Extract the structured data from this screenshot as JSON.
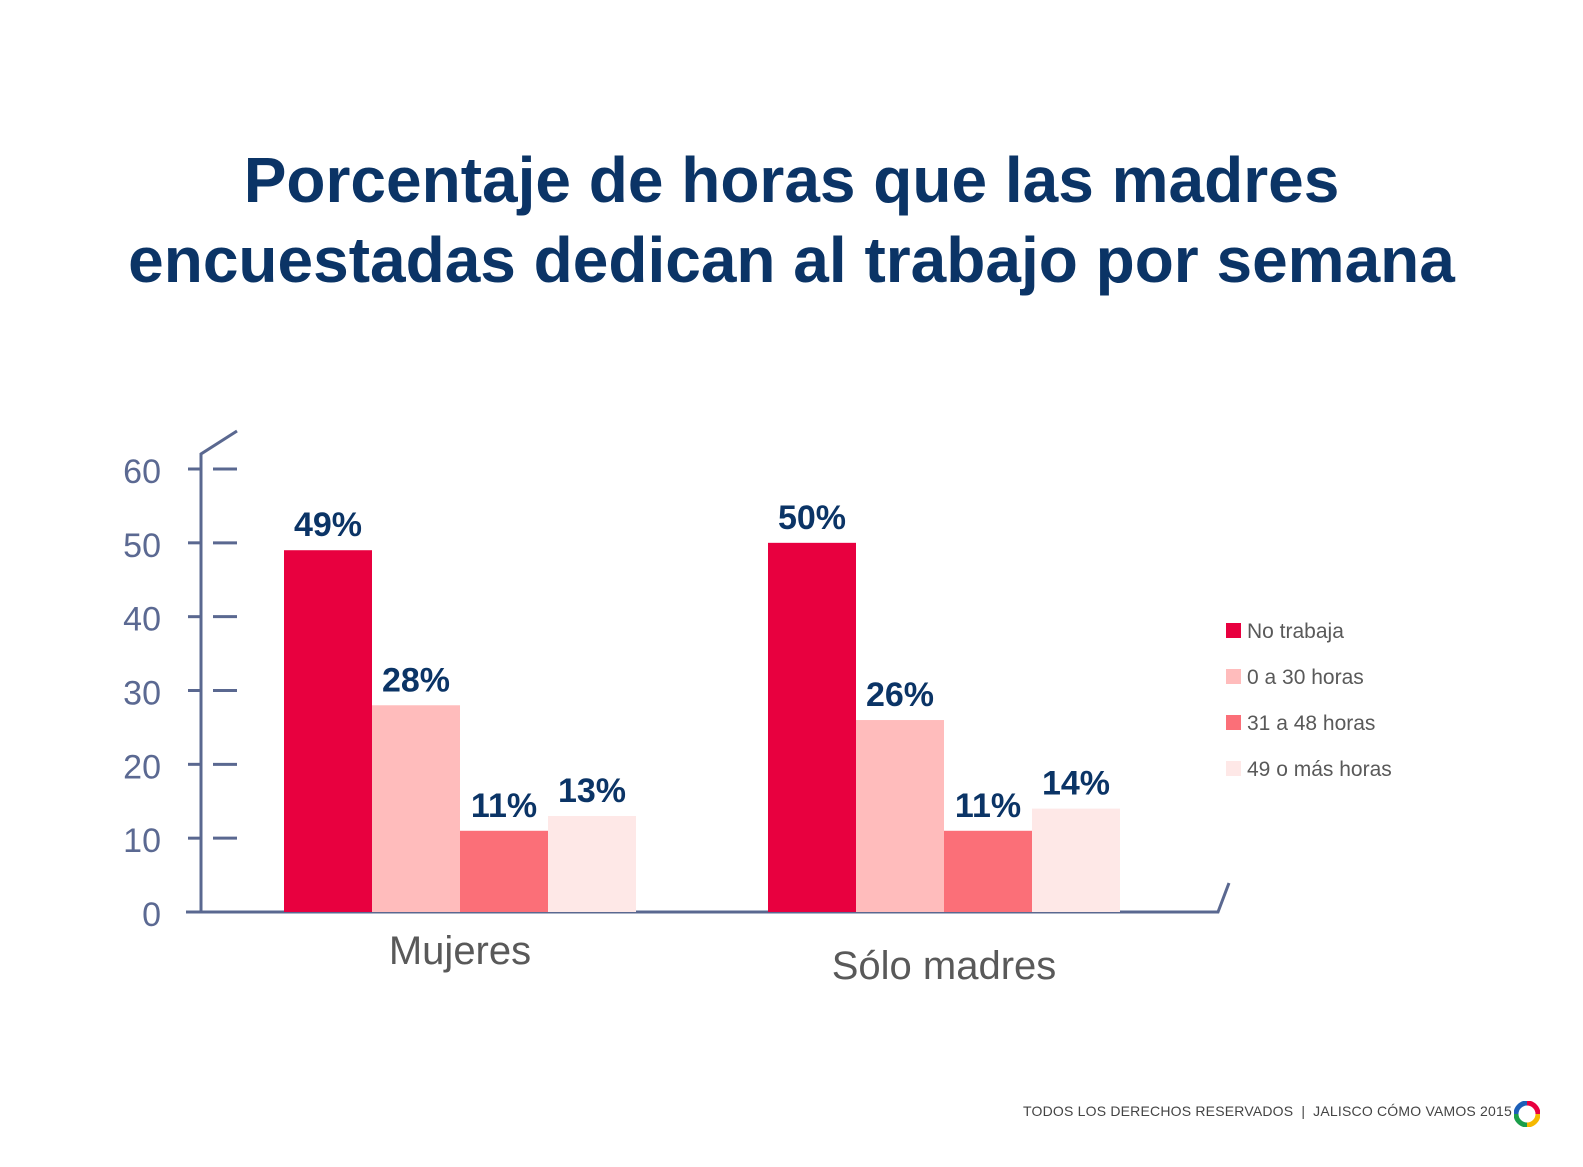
{
  "title": {
    "line1": "Porcentaje de horas que las madres",
    "line2": "encuestadas dedican al trabajo por semana"
  },
  "chart_data": {
    "type": "bar",
    "title": "Porcentaje de horas que las madres encuestadas dedican al trabajo por semana",
    "xlabel": "",
    "ylabel": "",
    "ylim": [
      0,
      60
    ],
    "yticks": [
      "0",
      "10",
      "20",
      "30",
      "40",
      "50",
      "60"
    ],
    "categories": [
      "Mujeres",
      "Sólo madres"
    ],
    "series": [
      {
        "name": "No trabaja",
        "color": "#e8003f",
        "values": [
          49,
          50
        ],
        "labels": [
          "49%",
          "50%"
        ]
      },
      {
        "name": "0 a 30 horas",
        "color": "#ffbcbc",
        "values": [
          28,
          26
        ],
        "labels": [
          "28%",
          "26%"
        ]
      },
      {
        "name": "31 a 48 horas",
        "color": "#fb6f78",
        "values": [
          11,
          11
        ],
        "labels": [
          "11%",
          "11%"
        ]
      },
      {
        "name": "49 o más horas",
        "color": "#fee8e7",
        "values": [
          13,
          14
        ],
        "labels": [
          "13%",
          "14%"
        ]
      }
    ],
    "legend_position": "right",
    "grid": false,
    "colors": {
      "axis": "#5a6890",
      "tick_text": "#5b6992",
      "value_text": "#0b3466",
      "category_text": "#595959"
    }
  },
  "footer": {
    "rights": "TODOS LOS DERECHOS RESERVADOS",
    "separator": "|",
    "source": "JALISCO CÓMO VAMOS 2015",
    "logo_icon": "jalisco-como-vamos-logo-icon"
  }
}
